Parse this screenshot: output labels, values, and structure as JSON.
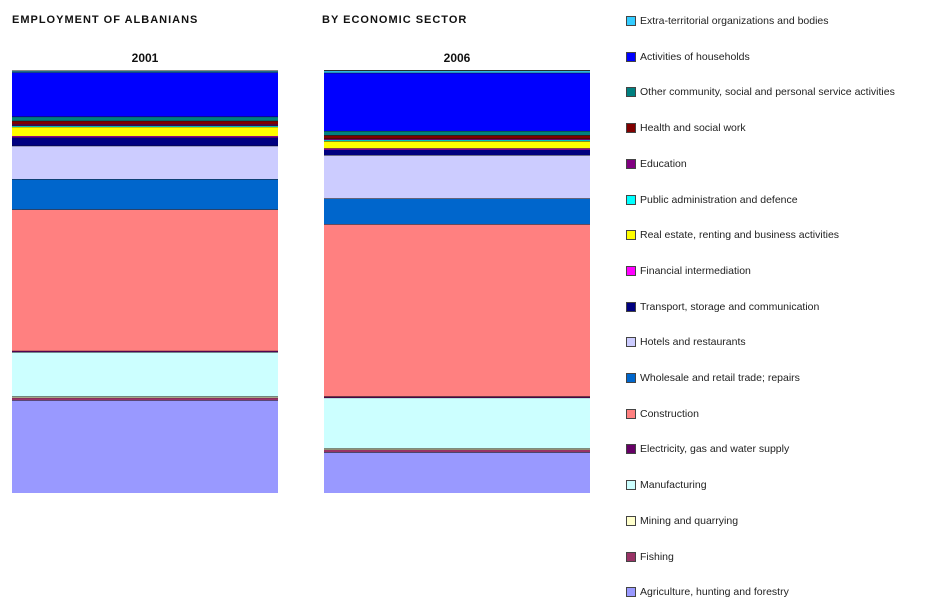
{
  "chart_data": {
    "type": "bar",
    "stacked": "100%",
    "title_left": "EMPLOYMENT OF ALBANIANS",
    "title_right": "BY ECONOMIC SECTOR",
    "categories": [
      "2001",
      "2006"
    ],
    "ylim": [
      0,
      100
    ],
    "grid": false,
    "legend_position": "right",
    "series": [
      {
        "name": "Agriculture, hunting and forestry",
        "color": "#9999ff",
        "values": [
          22.0,
          9.7
        ]
      },
      {
        "name": "Fishing",
        "color": "#993366",
        "values": [
          0.6,
          0.6
        ]
      },
      {
        "name": "Mining and quarrying",
        "color": "#ffffcc",
        "values": [
          0.3,
          0.3
        ]
      },
      {
        "name": "Manufacturing",
        "color": "#ccffff",
        "values": [
          10.5,
          12.0
        ]
      },
      {
        "name": "Electricity, gas and water supply",
        "color": "#660066",
        "values": [
          0.3,
          0.3
        ]
      },
      {
        "name": "Construction",
        "color": "#ff8080",
        "values": [
          33.5,
          40.8
        ]
      },
      {
        "name": "Wholesale and retail trade; repairs",
        "color": "#0066cc",
        "values": [
          7.2,
          6.1
        ]
      },
      {
        "name": "Hotels and restaurants",
        "color": "#ccccff",
        "values": [
          7.9,
          10.3
        ]
      },
      {
        "name": "Transport, storage and communication",
        "color": "#000080",
        "values": [
          2.0,
          1.3
        ]
      },
      {
        "name": "Financial intermediation",
        "color": "#ff00ff",
        "values": [
          0.3,
          0.3
        ]
      },
      {
        "name": "Real estate, renting and business activities",
        "color": "#ffff00",
        "values": [
          2.2,
          1.7
        ]
      },
      {
        "name": "Public administration and defence",
        "color": "#00ffff",
        "values": [
          0.3,
          0.3
        ]
      },
      {
        "name": "Education",
        "color": "#800080",
        "values": [
          0.3,
          0.3
        ]
      },
      {
        "name": "Health and social work",
        "color": "#800000",
        "values": [
          0.8,
          0.8
        ]
      },
      {
        "name": "Other community, social and personal service activities",
        "color": "#008080",
        "values": [
          1.0,
          1.0
        ]
      },
      {
        "name": "Activities of households",
        "color": "#0000ff",
        "values": [
          10.5,
          13.8
        ]
      },
      {
        "name": "Extra-territorial organizations and bodies",
        "color": "#33ccff",
        "values": [
          0.3,
          0.5
        ]
      }
    ]
  }
}
